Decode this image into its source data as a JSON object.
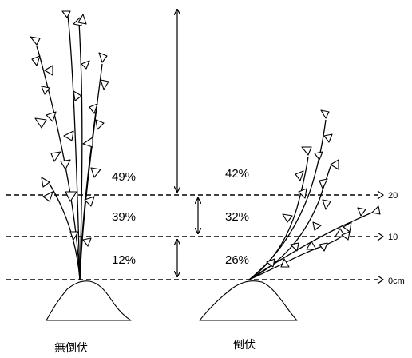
{
  "levels": {
    "l20": "20",
    "l10": "10",
    "l0": "0cm"
  },
  "upright": {
    "top": "49%",
    "middle": "39%",
    "bottom": "12%",
    "caption": "無倒伏"
  },
  "lodged": {
    "top": "42%",
    "middle": "32%",
    "bottom": "26%",
    "caption": "倒伏"
  }
}
